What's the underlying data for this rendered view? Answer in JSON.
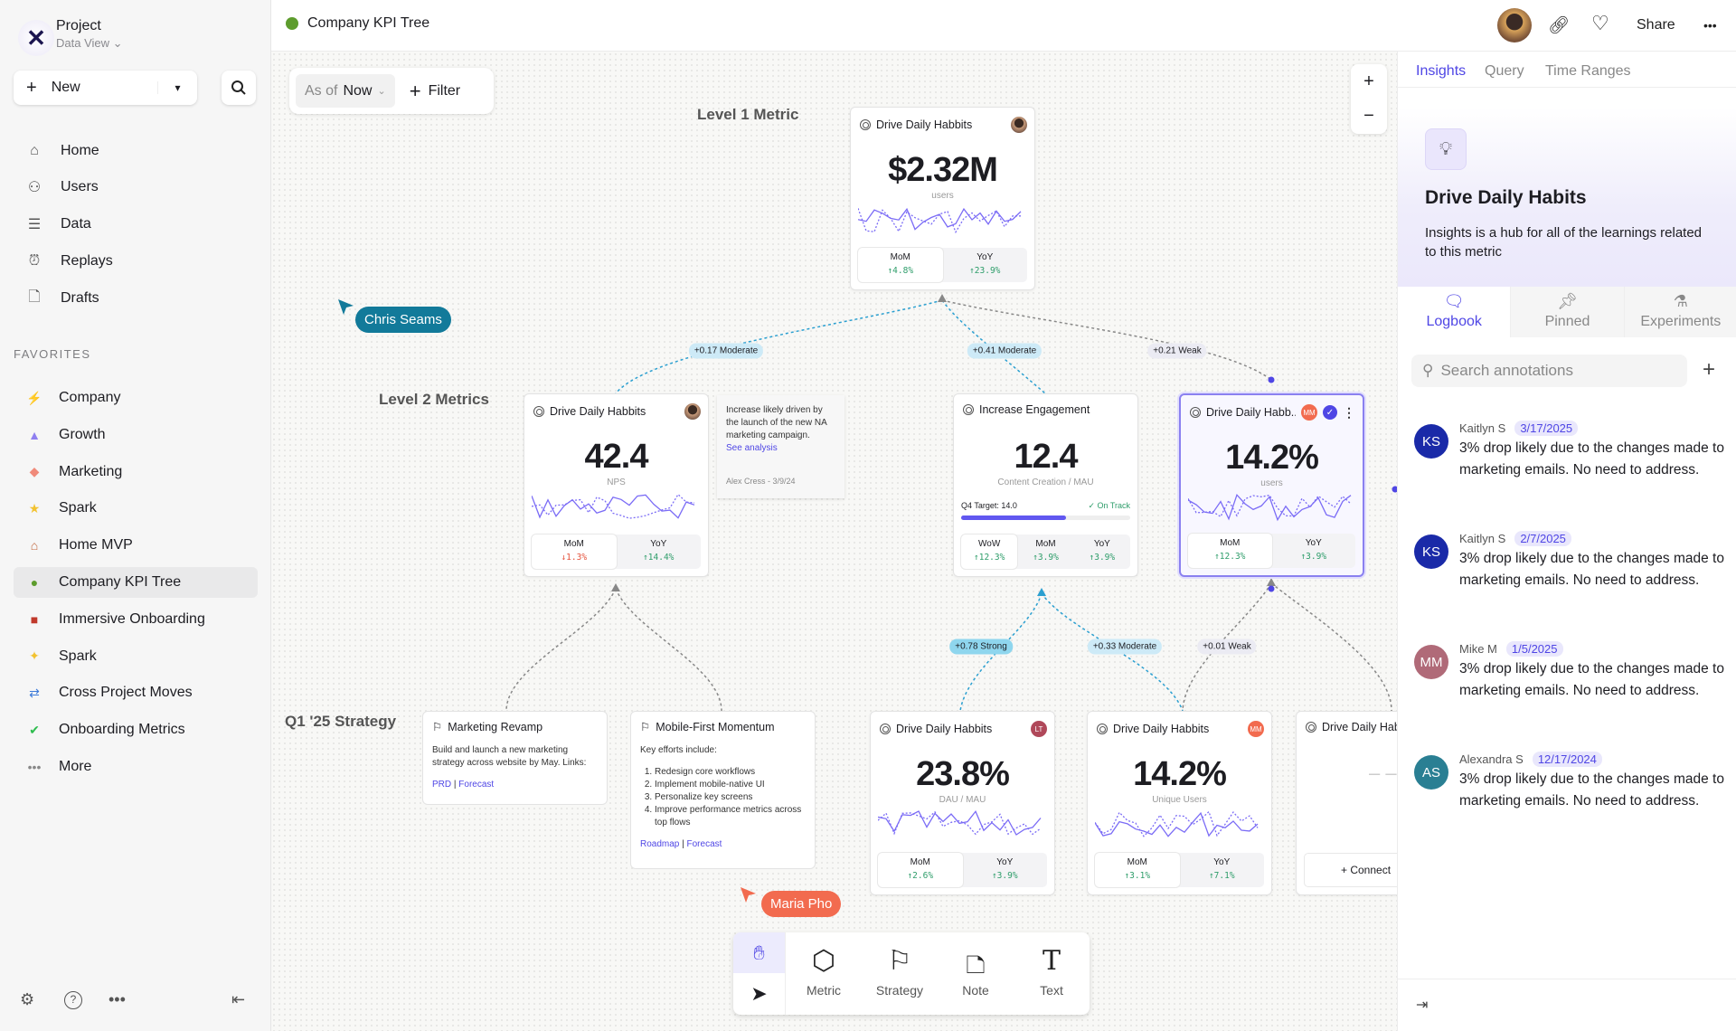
{
  "sidebar": {
    "project": "Project",
    "view": "Data View",
    "new_label": "New",
    "nav": [
      {
        "label": "Home",
        "icon": "home-icon"
      },
      {
        "label": "Users",
        "icon": "users-icon"
      },
      {
        "label": "Data",
        "icon": "database-icon"
      },
      {
        "label": "Replays",
        "icon": "replay-icon"
      },
      {
        "label": "Drafts",
        "icon": "file-icon"
      }
    ],
    "favorites_heading": "FAVORITES",
    "favorites": [
      {
        "label": "Company",
        "icon": "bolt-icon",
        "color": "#9a9a9a"
      },
      {
        "label": "Growth",
        "icon": "rocket-icon",
        "color": "#8f7ff0"
      },
      {
        "label": "Marketing",
        "icon": "palette-icon",
        "color": "#f08a7a"
      },
      {
        "label": "Spark",
        "icon": "star-icon",
        "color": "#f2c230"
      },
      {
        "label": "Home MVP",
        "icon": "house-icon",
        "color": "#c0643a"
      },
      {
        "label": "Company KPI Tree",
        "icon": "tree-icon",
        "color": "#5d9c2d",
        "selected": true
      },
      {
        "label": "Immersive Onboarding",
        "icon": "train-icon",
        "color": "#c0392b"
      },
      {
        "label": "Spark",
        "icon": "sparkles-icon",
        "color": "#f2c230"
      },
      {
        "label": "Cross Project Moves",
        "icon": "arrows-icon",
        "color": "#3d7bd9"
      },
      {
        "label": "Onboarding Metrics",
        "icon": "check-icon",
        "color": "#2ebd4e"
      },
      {
        "label": "More",
        "icon": "more-icon",
        "color": "#888"
      }
    ]
  },
  "header": {
    "title": "Company KPI Tree",
    "share": "Share"
  },
  "canvas": {
    "as_of_label": "As of",
    "as_of_value": "Now",
    "filter_label": "Filter",
    "level1": "Level 1 Metric",
    "level2": "Level 2 Metrics",
    "strategy_level": "Q1 '25 Strategy",
    "metric_cards": [
      {
        "title": "Drive Daily Habbits",
        "avatar": {
          "kind": "photo"
        },
        "value": "$2.32M",
        "unit": "users",
        "stats": [
          {
            "label": "MoM",
            "value": "↑4.8%",
            "dir": "up"
          },
          {
            "label": "YoY",
            "value": "↑23.9%",
            "dir": "up"
          }
        ]
      },
      {
        "title": "Drive Daily Habbits",
        "avatar": {
          "kind": "photo"
        },
        "value": "42.4",
        "unit": "NPS",
        "stats": [
          {
            "label": "MoM",
            "value": "↓1.3%",
            "dir": "down"
          },
          {
            "label": "YoY",
            "value": "↑14.4%",
            "dir": "up"
          }
        ]
      },
      {
        "title": "Increase Engagement",
        "value": "12.4",
        "unit": "Content Creation / MAU",
        "target": {
          "label": "Q4 Target: 14.0",
          "status": "✓ On Track",
          "progress": 0.62
        },
        "stats": [
          {
            "label": "WoW",
            "value": "↑12.3%",
            "dir": "up"
          },
          {
            "label": "MoM",
            "value": "↑3.9%",
            "dir": "up"
          },
          {
            "label": "YoY",
            "value": "↑3.9%",
            "dir": "up"
          }
        ]
      },
      {
        "title": "Drive Daily Habb..",
        "avatar": {
          "kind": "initials",
          "initials": "MM",
          "color": "#f26b4f"
        },
        "verified": true,
        "selected": true,
        "value": "14.2%",
        "unit": "users",
        "stats": [
          {
            "label": "MoM",
            "value": "↑12.3%",
            "dir": "up"
          },
          {
            "label": "YoY",
            "value": "↑3.9%",
            "dir": "up"
          }
        ]
      },
      {
        "title": "Drive Daily Habbits",
        "avatar": {
          "kind": "initials",
          "initials": "LT",
          "color": "#b0485a"
        },
        "value": "23.8%",
        "unit": "DAU / MAU",
        "stats": [
          {
            "label": "MoM",
            "value": "↑2.6%",
            "dir": "up"
          },
          {
            "label": "YoY",
            "value": "↑3.9%",
            "dir": "up"
          }
        ]
      },
      {
        "title": "Drive Daily Habbits",
        "avatar": {
          "kind": "initials",
          "initials": "MM",
          "color": "#f26b4f"
        },
        "value": "14.2%",
        "unit": "Unique Users",
        "stats": [
          {
            "label": "MoM",
            "value": "↑3.1%",
            "dir": "up"
          },
          {
            "label": "YoY",
            "value": "↑7.1%",
            "dir": "up"
          }
        ]
      }
    ],
    "partial_card": {
      "title": "Drive Daily Hab",
      "value": "– –",
      "connect": "Connect"
    },
    "note": {
      "text": "Increase likely driven by the launch of the new NA marketing campaign.",
      "link": "See analysis",
      "byline": "Alex Cress - 3/9/24"
    },
    "strategies": [
      {
        "title": "Marketing Revamp",
        "body": "Build and launch a new marketing strategy across website by May. Links:",
        "links": [
          "PRD",
          "Forecast"
        ]
      },
      {
        "title": "Mobile-First Momentum",
        "body": "Key efforts include:",
        "items": [
          "Redesign core workflows",
          "Implement mobile-native UI",
          "Personalize key screens",
          "Improve performance metrics across top flows"
        ],
        "links": [
          "Roadmap",
          "Forecast"
        ]
      }
    ],
    "edge_labels": [
      {
        "text": "+0.17 Moderate",
        "kind": "moderate"
      },
      {
        "text": "+0.41 Moderate",
        "kind": "moderate"
      },
      {
        "text": "+0.21 Weak",
        "kind": "weak"
      },
      {
        "text": "+0.78 Strong",
        "kind": "strong"
      },
      {
        "text": "+0.33 Moderate",
        "kind": "moderate"
      },
      {
        "text": "+0.01 Weak",
        "kind": "weak"
      }
    ],
    "cursors": [
      {
        "name": "Chris Seams",
        "color": "#127a9a"
      },
      {
        "name": "Maria Pho",
        "color": "#f26b4f"
      }
    ],
    "toolbar": [
      "Metric",
      "Strategy",
      "Note",
      "Text"
    ]
  },
  "right_panel": {
    "tabs": [
      "Insights",
      "Query",
      "Time Ranges"
    ],
    "title": "Drive Daily Habits",
    "description": "Insights is a hub for all of the learnings related to this metric",
    "subtabs": [
      "Logbook",
      "Pinned",
      "Experiments"
    ],
    "search_placeholder": "Search annotations",
    "annotations": [
      {
        "initials": "KS",
        "author": "Kaitlyn S",
        "date": "3/17/2025",
        "text": "3% drop likely due to the changes made to marketing emails. No need to address.",
        "color": "#1a2aa8"
      },
      {
        "initials": "KS",
        "author": "Kaitlyn S",
        "date": "2/7/2025",
        "text": "3% drop likely due to the changes made to marketing emails. No need to address.",
        "color": "#1a2aa8"
      },
      {
        "initials": "MM",
        "author": "Mike M",
        "date": "1/5/2025",
        "text": "3% drop likely due to the changes made to marketing emails. No need to address.",
        "color": "#b06a78"
      },
      {
        "initials": "AS",
        "author": "Alexandra S",
        "date": "12/17/2024",
        "text": "3% drop likely due to the changes made to marketing emails. No need to address.",
        "color": "#2a7f93"
      }
    ]
  }
}
